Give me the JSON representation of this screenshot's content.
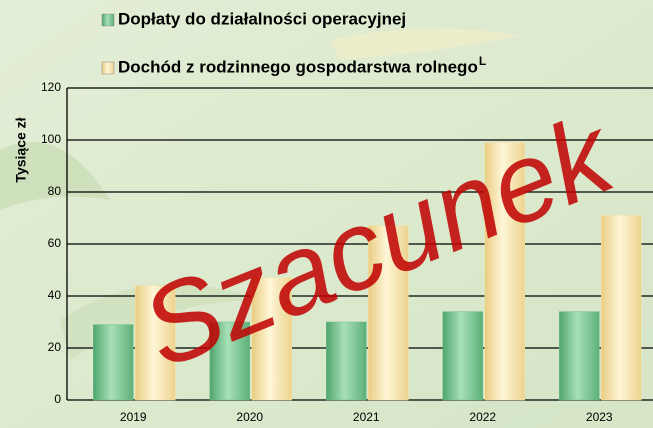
{
  "chart_data": {
    "type": "bar",
    "y_label": "Tysiące zł",
    "annotation": "Szacunek",
    "footnote_marker": "L",
    "categories": [
      "2019",
      "2020",
      "2021",
      "2022",
      "2023"
    ],
    "series": [
      {
        "name": "Dopłaty do działalności operacyjnej",
        "color": "#6fc08a",
        "values": [
          29,
          30,
          30,
          34,
          34
        ]
      },
      {
        "name": "Dochód z rodzinnego gospodarstwa rolnego",
        "color": "#f7e2a6",
        "values": [
          44,
          47,
          67,
          99,
          71
        ]
      }
    ],
    "ylim": [
      0,
      120
    ],
    "yticks": [
      0,
      20,
      40,
      60,
      80,
      100,
      120
    ],
    "grid": true
  }
}
